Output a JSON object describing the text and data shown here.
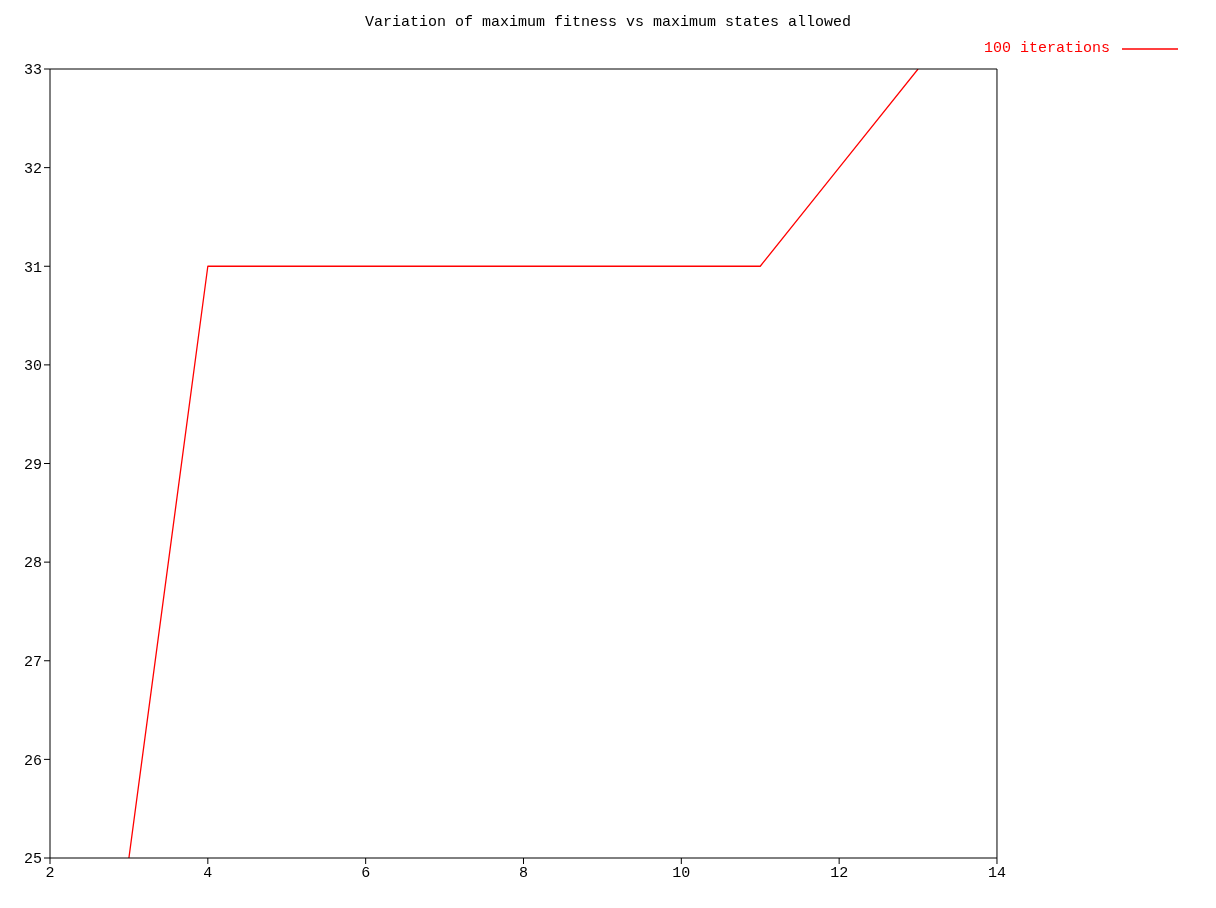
{
  "chart_data": {
    "type": "line",
    "title": "Variation of maximum fitness vs maximum states allowed",
    "x": [
      3,
      4,
      5,
      6,
      7,
      8,
      9,
      10,
      11,
      12,
      13
    ],
    "series": [
      {
        "name": "100 iterations",
        "color": "#ff0000",
        "values": [
          25,
          31,
          31,
          31,
          31,
          31,
          31,
          31,
          31,
          32,
          33
        ]
      }
    ],
    "xlim": [
      2,
      14
    ],
    "xticks": [
      2,
      4,
      6,
      8,
      10,
      12,
      14
    ],
    "ylim": [
      25,
      33
    ],
    "yticks": [
      25,
      26,
      27,
      28,
      29,
      30,
      31,
      32,
      33
    ],
    "grid": false,
    "legend": "top right",
    "marker": "none",
    "line_style": "solid"
  }
}
